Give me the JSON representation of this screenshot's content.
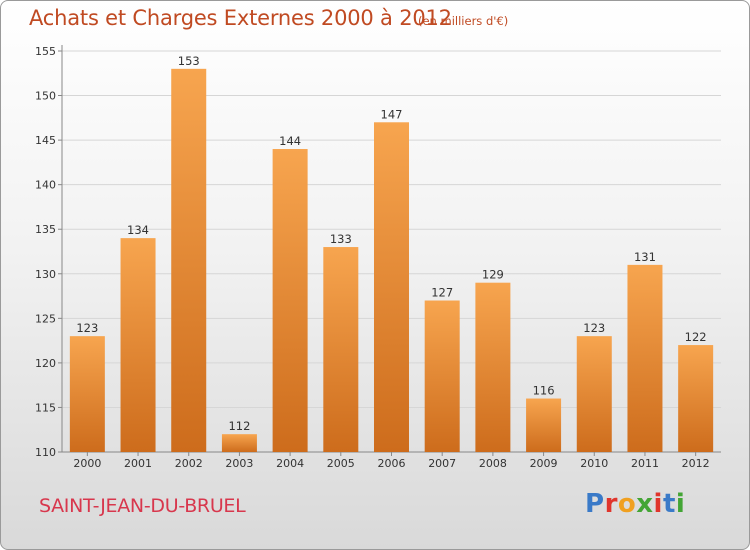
{
  "header": {
    "title": "Achats et Charges Externes 2000 à 2012",
    "subtitle": "(en milliers d'€)"
  },
  "footer": {
    "commune": "SAINT-JEAN-DU-BRUEL",
    "logo_text": "Proxiti",
    "logo_letters": [
      {
        "char": "P",
        "color": "#3a7ac8"
      },
      {
        "char": "r",
        "color": "#e0352c"
      },
      {
        "char": "o",
        "color": "#f0a020"
      },
      {
        "char": "x",
        "color": "#43a535"
      },
      {
        "char": "i",
        "color": "#e0352c"
      },
      {
        "char": "t",
        "color": "#3a7ac8"
      },
      {
        "char": "i",
        "color": "#43a535"
      }
    ]
  },
  "colors": {
    "bar_light": "#f7a54f",
    "bar_dark": "#cd6c1c",
    "title": "#c04a22",
    "commune": "#d8374d"
  },
  "chart_data": {
    "type": "bar",
    "title": "Achats et Charges Externes 2000 à 2012",
    "subtitle": "(en milliers d'€)",
    "xlabel": "",
    "ylabel": "",
    "categories": [
      "2000",
      "2001",
      "2002",
      "2003",
      "2004",
      "2005",
      "2006",
      "2007",
      "2008",
      "2009",
      "2010",
      "2011",
      "2012"
    ],
    "values": [
      123,
      134,
      153,
      112,
      144,
      133,
      147,
      127,
      129,
      116,
      123,
      131,
      122
    ],
    "ylim": [
      110,
      155
    ],
    "yticks": [
      110,
      115,
      120,
      125,
      130,
      135,
      140,
      145,
      150,
      155
    ],
    "grid": true,
    "legend": "none",
    "data_labels": true
  }
}
